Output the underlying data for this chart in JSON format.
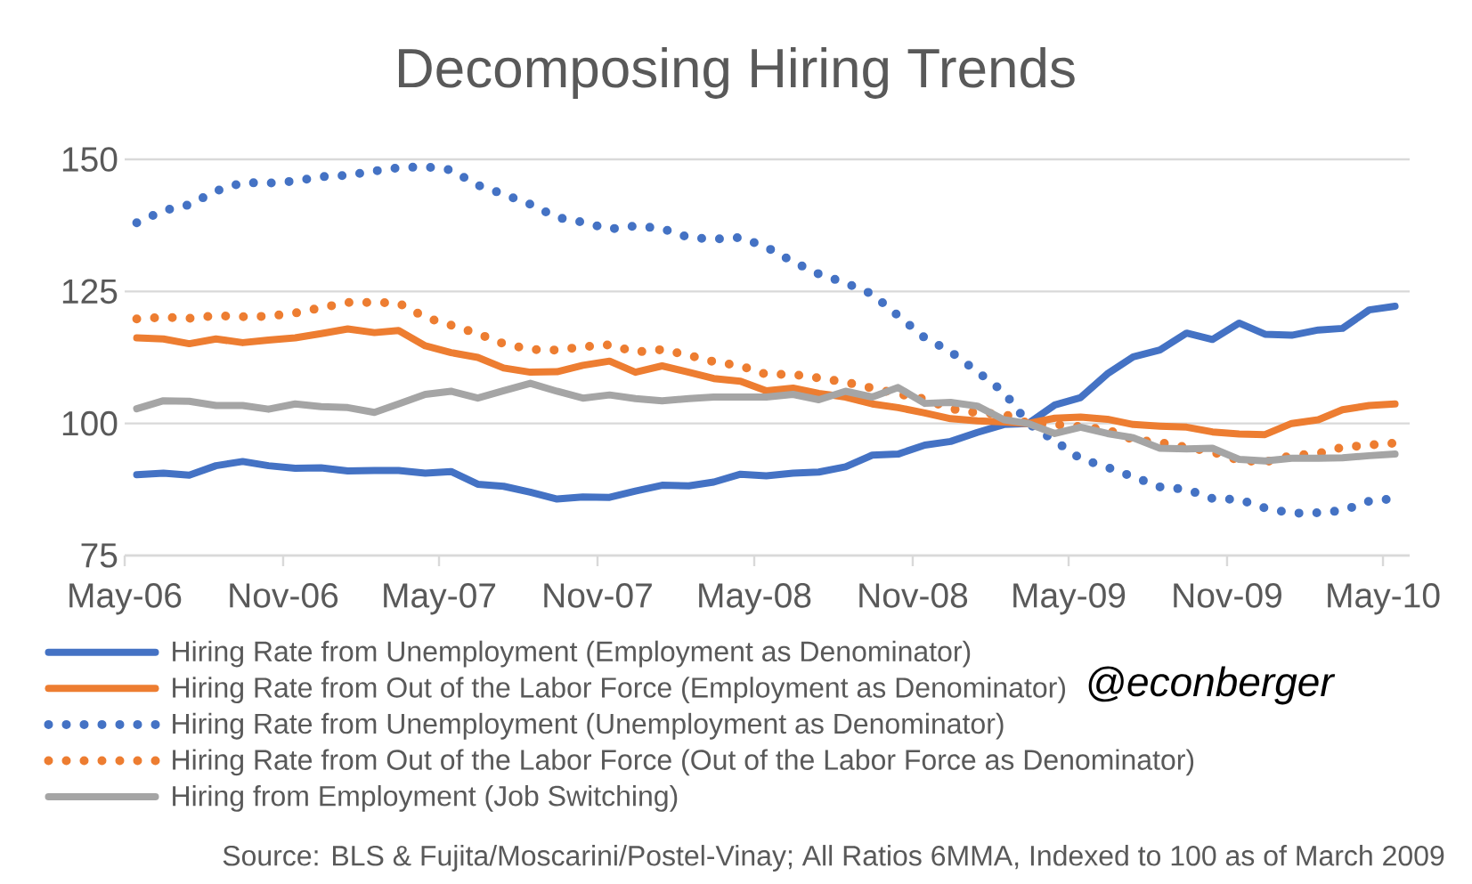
{
  "chart_data": {
    "type": "line",
    "title": "Decomposing Hiring Trends",
    "x": [
      "2006-05-15",
      "2006-06-15",
      "2006-07-15",
      "2006-08-15",
      "2006-09-15",
      "2006-10-15",
      "2006-11-15",
      "2006-12-15",
      "2007-01-15",
      "2007-02-15",
      "2007-03-15",
      "2007-04-15",
      "2007-05-15",
      "2007-06-15",
      "2007-07-15",
      "2007-08-15",
      "2007-09-15",
      "2007-10-15",
      "2007-11-15",
      "2007-12-15",
      "2008-01-15",
      "2008-02-15",
      "2008-03-15",
      "2008-04-15",
      "2008-05-15",
      "2008-06-15",
      "2008-07-15",
      "2008-08-15",
      "2008-09-15",
      "2008-10-15",
      "2008-11-15",
      "2008-12-15",
      "2009-01-15",
      "2009-02-15",
      "2009-03-15",
      "2009-04-15",
      "2009-05-15",
      "2009-06-15",
      "2009-07-15",
      "2009-08-15",
      "2009-09-15",
      "2009-10-15",
      "2009-11-15",
      "2009-12-15",
      "2010-01-15",
      "2010-02-15",
      "2010-03-15",
      "2010-04-15",
      "2010-05-15"
    ],
    "series": [
      {
        "name": "Hiring Rate from Unemployment (Employment as Denominator)",
        "color": "#4472c4",
        "line_style": "solid",
        "values": [
          90.3,
          90.6,
          90.2,
          92,
          92.8,
          92,
          91.5,
          91.6,
          91,
          91.1,
          91.1,
          90.6,
          90.9,
          88.5,
          88.1,
          87,
          85.7,
          86.1,
          86,
          87.2,
          88.3,
          88.2,
          88.9,
          90.4,
          90.1,
          90.6,
          90.8,
          91.8,
          94,
          94.2,
          95.9,
          96.6,
          98.3,
          99.8,
          100,
          103.5,
          104.9,
          109.4,
          112.6,
          113.9,
          117.1,
          115.9,
          119,
          116.9,
          116.7,
          117.7,
          118,
          121.5,
          122.2
        ]
      },
      {
        "name": "Hiring Rate from Out of the Labor Force (Employment as Denominator)",
        "color": "#ed7d31",
        "line_style": "solid",
        "values": [
          116.2,
          116,
          115.1,
          116,
          115.3,
          115.8,
          116.2,
          117,
          117.9,
          117.2,
          117.6,
          114.7,
          113.4,
          112.5,
          110.5,
          109.7,
          109.8,
          111,
          111.8,
          109.7,
          110.9,
          109.7,
          108.5,
          108,
          106.2,
          106.7,
          105.7,
          105,
          103.7,
          103,
          102,
          100.9,
          100.5,
          100.3,
          100,
          101,
          101.2,
          100.8,
          99.8,
          99.5,
          99.3,
          98.4,
          98,
          97.9,
          100,
          100.7,
          102.6,
          103.4,
          103.7
        ]
      },
      {
        "name": "Hiring Rate from Unemployment (Unemployment as Denominator)",
        "color": "#4472c4",
        "line_style": "dotted",
        "values": [
          138,
          140.3,
          141.4,
          144,
          145.6,
          145.5,
          145.9,
          146.7,
          147,
          147.8,
          148.4,
          148.6,
          148,
          145.1,
          143.4,
          141.5,
          139,
          138.1,
          136.8,
          137.4,
          136.9,
          135.2,
          134.9,
          135.2,
          133.4,
          130.6,
          128.3,
          126.6,
          124.5,
          120.4,
          116.2,
          113.6,
          109.8,
          105.9,
          100,
          96.7,
          93.3,
          91.7,
          89.9,
          88,
          87.5,
          85.8,
          85.6,
          84,
          83,
          83.1,
          83.5,
          85.3,
          85.8
        ]
      },
      {
        "name": "Hiring Rate from Out of the Labor Force (Out of the Labor Force as Denominator)",
        "color": "#ed7d31",
        "line_style": "dotted",
        "values": [
          119.8,
          120.1,
          119.9,
          120.4,
          120.2,
          120.3,
          120.9,
          121.9,
          122.9,
          122.9,
          122.8,
          120.1,
          118.6,
          117,
          115.1,
          114,
          113.9,
          114.5,
          114.9,
          113.5,
          114,
          112.9,
          111.7,
          110.9,
          109.3,
          109.3,
          108.6,
          107.8,
          106.7,
          105.6,
          104.6,
          102.8,
          102,
          101.8,
          100,
          99.8,
          99.4,
          98.8,
          96.9,
          96.4,
          95.5,
          94.6,
          93,
          92.7,
          93.9,
          94.3,
          95.5,
          95.9,
          96.3
        ]
      },
      {
        "name": "Hiring from Employment (Job Switching)",
        "color": "#a5a5a5",
        "line_style": "solid",
        "values": [
          102.8,
          104.3,
          104.2,
          103.4,
          103.4,
          102.7,
          103.7,
          103.2,
          103,
          102.1,
          103.7,
          105.5,
          106.1,
          104.8,
          106.2,
          107.6,
          106.1,
          104.8,
          105.4,
          104.7,
          104.3,
          104.7,
          105,
          105,
          105,
          105.5,
          104.5,
          106.1,
          105,
          106.8,
          103.8,
          104,
          103.3,
          100.7,
          100,
          98.1,
          99.3,
          98.1,
          97.3,
          95.3,
          95.2,
          95.3,
          93.2,
          92.9,
          93.4,
          93.4,
          93.5,
          93.9,
          94.2
        ]
      }
    ],
    "xlim": [
      "2006-05-01",
      "2010-06-01"
    ],
    "xticks": [
      {
        "value": "2006-05-01",
        "label": "May-06"
      },
      {
        "value": "2006-11-01",
        "label": "Nov-06"
      },
      {
        "value": "2007-05-01",
        "label": "May-07"
      },
      {
        "value": "2007-11-01",
        "label": "Nov-07"
      },
      {
        "value": "2008-05-01",
        "label": "May-08"
      },
      {
        "value": "2008-11-01",
        "label": "Nov-08"
      },
      {
        "value": "2009-05-01",
        "label": "May-09"
      },
      {
        "value": "2009-11-01",
        "label": "Nov-09"
      },
      {
        "value": "2010-05-01",
        "label": "May-10"
      }
    ],
    "ylim": [
      75,
      150
    ],
    "yticks": [
      75,
      100,
      125,
      150
    ],
    "grid": "y",
    "legend": "bottom",
    "annotations": [
      "@econberger",
      "Source: BLS & Fujita/Moscarini/Postel-Vinay; All Ratios 6MMA, Indexed to 100 as of March 2009"
    ]
  }
}
